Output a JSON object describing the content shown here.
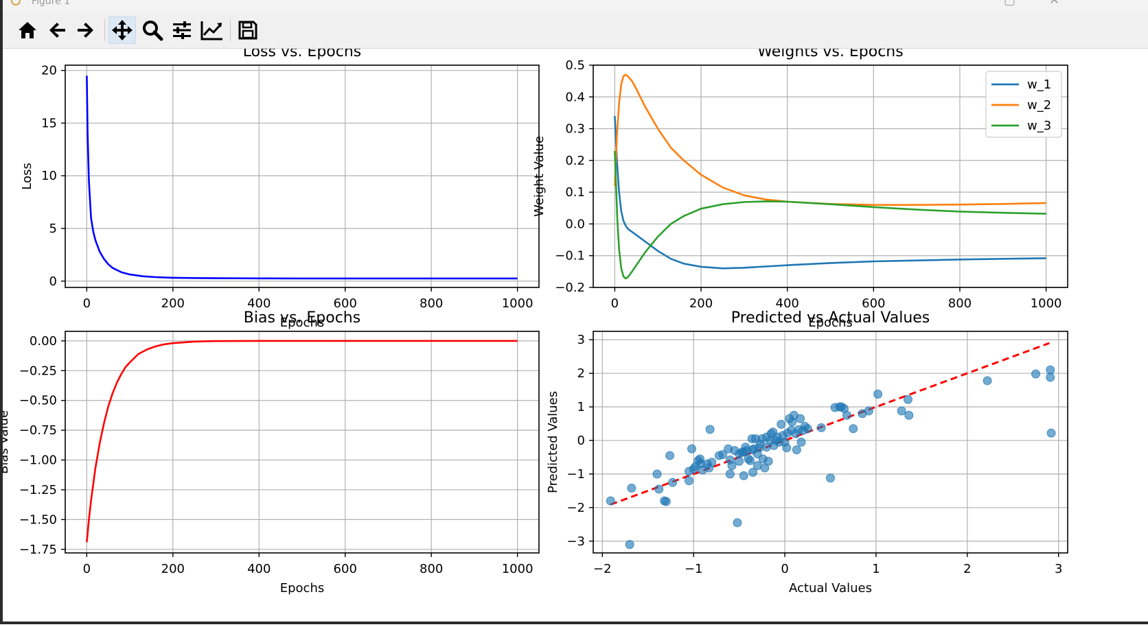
{
  "window": {
    "title": "Figure 1"
  },
  "toolbar": {
    "buttons": [
      {
        "name": "home-button",
        "icon": "home-icon"
      },
      {
        "name": "back-button",
        "icon": "arrow-left-icon"
      },
      {
        "name": "forward-button",
        "icon": "arrow-right-icon"
      },
      {
        "name": "pan-button",
        "icon": "move-icon"
      },
      {
        "name": "zoom-button",
        "icon": "magnifier-icon"
      },
      {
        "name": "subplots-button",
        "icon": "sliders-icon"
      },
      {
        "name": "axes-button",
        "icon": "line-chart-icon"
      },
      {
        "name": "save-button",
        "icon": "floppy-icon"
      }
    ]
  },
  "chart_data": [
    {
      "type": "line",
      "title": "Loss vs. Epochs",
      "xlabel": "Epochs",
      "ylabel": "Loss",
      "xlim": [
        -50,
        1050
      ],
      "ylim": [
        -0.6,
        20.5
      ],
      "xticks": [
        0,
        200,
        400,
        600,
        800,
        1000
      ],
      "xtick_labels": [
        "0",
        "200",
        "400",
        "600",
        "800",
        "1000"
      ],
      "yticks": [
        0,
        5,
        10,
        15,
        20
      ],
      "ytick_labels": [
        "0",
        "5",
        "10",
        "15",
        "20"
      ],
      "grid": true,
      "series": [
        {
          "color": "#0000ff",
          "x": [
            0,
            2,
            5,
            10,
            15,
            20,
            30,
            40,
            50,
            60,
            80,
            100,
            130,
            160,
            200,
            250,
            300,
            400,
            500,
            600,
            700,
            800,
            900,
            1000
          ],
          "y": [
            19.5,
            14.0,
            9.5,
            6.0,
            4.7,
            3.9,
            2.8,
            2.1,
            1.6,
            1.25,
            0.85,
            0.63,
            0.46,
            0.38,
            0.32,
            0.29,
            0.27,
            0.26,
            0.25,
            0.25,
            0.25,
            0.25,
            0.25,
            0.25
          ]
        }
      ]
    },
    {
      "type": "line",
      "title": "Weights vs. Epochs",
      "xlabel": "Epochs",
      "ylabel": "Weight Value",
      "xlim": [
        -50,
        1050
      ],
      "ylim": [
        -0.2,
        0.5
      ],
      "xticks": [
        0,
        200,
        400,
        600,
        800,
        1000
      ],
      "xtick_labels": [
        "0",
        "200",
        "400",
        "600",
        "800",
        "1000"
      ],
      "yticks": [
        -0.2,
        -0.1,
        0.0,
        0.1,
        0.2,
        0.3,
        0.4,
        0.5
      ],
      "ytick_labels": [
        "−0.2",
        "−0.1",
        "0.0",
        "0.1",
        "0.2",
        "0.3",
        "0.4",
        "0.5"
      ],
      "grid": true,
      "legend": "top-right",
      "series": [
        {
          "name": "w_1",
          "color": "#1f77b4",
          "x": [
            0,
            5,
            10,
            15,
            20,
            25,
            30,
            40,
            50,
            70,
            100,
            130,
            160,
            200,
            250,
            300,
            400,
            500,
            600,
            700,
            800,
            900,
            1000
          ],
          "y": [
            0.34,
            0.2,
            0.1,
            0.04,
            0.01,
            -0.005,
            -0.015,
            -0.025,
            -0.035,
            -0.055,
            -0.085,
            -0.11,
            -0.125,
            -0.135,
            -0.14,
            -0.138,
            -0.13,
            -0.123,
            -0.118,
            -0.115,
            -0.112,
            -0.11,
            -0.108
          ]
        },
        {
          "name": "w_2",
          "color": "#ff7f0e",
          "x": [
            0,
            5,
            10,
            15,
            20,
            25,
            30,
            40,
            50,
            70,
            100,
            130,
            160,
            200,
            250,
            300,
            350,
            400,
            500,
            600,
            700,
            800,
            900,
            1000
          ],
          "y": [
            0.12,
            0.28,
            0.38,
            0.44,
            0.465,
            0.47,
            0.465,
            0.45,
            0.425,
            0.37,
            0.3,
            0.24,
            0.2,
            0.155,
            0.115,
            0.09,
            0.077,
            0.07,
            0.063,
            0.06,
            0.06,
            0.061,
            0.063,
            0.066
          ]
        },
        {
          "name": "w_3",
          "color": "#2ca02c",
          "x": [
            0,
            3,
            6,
            10,
            15,
            20,
            25,
            30,
            40,
            50,
            70,
            100,
            130,
            160,
            200,
            250,
            300,
            350,
            400,
            500,
            600,
            700,
            800,
            900,
            1000
          ],
          "y": [
            0.23,
            0.12,
            0.01,
            -0.08,
            -0.14,
            -0.165,
            -0.172,
            -0.168,
            -0.15,
            -0.13,
            -0.09,
            -0.04,
            0.0,
            0.025,
            0.048,
            0.062,
            0.069,
            0.071,
            0.07,
            0.062,
            0.053,
            0.045,
            0.039,
            0.035,
            0.032
          ]
        }
      ]
    },
    {
      "type": "line",
      "title": "Bias vs. Epochs",
      "xlabel": "Epochs",
      "ylabel": "Bias Value",
      "xlim": [
        -50,
        1050
      ],
      "ylim": [
        -1.78,
        0.08
      ],
      "xticks": [
        0,
        200,
        400,
        600,
        800,
        1000
      ],
      "xtick_labels": [
        "0",
        "200",
        "400",
        "600",
        "800",
        "1000"
      ],
      "yticks": [
        0.0,
        -0.25,
        -0.5,
        -0.75,
        -1.0,
        -1.25,
        -1.5,
        -1.75
      ],
      "ytick_labels": [
        "0.00",
        "−0.25",
        "−0.50",
        "−0.75",
        "−1.00",
        "−1.25",
        "−1.50",
        "−1.75"
      ],
      "grid": true,
      "series": [
        {
          "color": "#ff0000",
          "x": [
            0,
            5,
            10,
            20,
            30,
            40,
            50,
            60,
            70,
            80,
            90,
            100,
            120,
            140,
            160,
            180,
            200,
            250,
            300,
            350,
            400,
            500,
            600,
            800,
            1000
          ],
          "y": [
            -1.69,
            -1.5,
            -1.34,
            -1.07,
            -0.86,
            -0.69,
            -0.55,
            -0.44,
            -0.35,
            -0.28,
            -0.22,
            -0.18,
            -0.11,
            -0.072,
            -0.046,
            -0.029,
            -0.019,
            -0.006,
            -0.002,
            -0.001,
            0.0,
            0.0,
            0.0,
            0.0,
            0.0
          ]
        }
      ]
    },
    {
      "type": "scatter",
      "title": "Predicted vs Actual Values",
      "xlabel": "Actual Values",
      "ylabel": "Predicted Values",
      "xlim": [
        -2.1,
        3.1
      ],
      "ylim": [
        -3.35,
        3.25
      ],
      "xticks": [
        -2,
        -1,
        0,
        1,
        2,
        3
      ],
      "xtick_labels": [
        "−2",
        "−1",
        "0",
        "1",
        "2",
        "3"
      ],
      "yticks": [
        -3,
        -2,
        -1,
        0,
        1,
        2,
        3
      ],
      "ytick_labels": [
        "−3",
        "−2",
        "−1",
        "0",
        "1",
        "2",
        "3"
      ],
      "grid": true,
      "reference_line": {
        "color": "#ff0000",
        "style": "dashed",
        "x": [
          -1.91,
          2.9
        ],
        "y": [
          -1.91,
          2.9
        ]
      },
      "points": {
        "color": "#1f77b4",
        "x": [
          -1.91,
          -1.7,
          -1.68,
          -1.4,
          -1.38,
          -1.32,
          -1.3,
          -1.26,
          -1.23,
          -1.05,
          -1.05,
          -1.02,
          -1.0,
          -0.98,
          -0.95,
          -0.93,
          -0.92,
          -0.9,
          -0.85,
          -0.83,
          -0.82,
          -0.8,
          -0.72,
          -0.68,
          -0.62,
          -0.6,
          -0.6,
          -0.58,
          -0.55,
          -0.52,
          -0.5,
          -0.5,
          -0.47,
          -0.45,
          -0.45,
          -0.43,
          -0.42,
          -0.4,
          -0.38,
          -0.36,
          -0.35,
          -0.35,
          -0.34,
          -0.32,
          -0.3,
          -0.3,
          -0.28,
          -0.27,
          -0.25,
          -0.24,
          -0.22,
          -0.2,
          -0.2,
          -0.18,
          -0.16,
          -0.15,
          -0.13,
          -0.12,
          -0.1,
          -0.08,
          -0.06,
          -0.04,
          -0.02,
          0.0,
          0.02,
          0.03,
          0.05,
          0.07,
          0.08,
          0.1,
          0.12,
          0.13,
          0.15,
          0.17,
          0.18,
          0.2,
          0.22,
          0.25,
          0.4,
          0.5,
          0.55,
          0.6,
          0.62,
          0.65,
          0.68,
          0.75,
          0.85,
          0.92,
          1.02,
          1.28,
          1.35,
          1.36,
          2.22,
          2.75,
          2.91,
          2.91,
          2.92
        ],
        "y": [
          -1.8,
          -3.1,
          -1.42,
          -1.0,
          -1.45,
          -1.8,
          -1.82,
          -0.45,
          -1.25,
          -1.2,
          -0.92,
          -0.25,
          -0.85,
          -0.78,
          -0.6,
          -0.55,
          -0.7,
          -0.88,
          -0.7,
          -0.82,
          0.33,
          -0.65,
          -0.45,
          -0.42,
          -0.25,
          -0.58,
          -1.0,
          -0.75,
          -0.3,
          -2.45,
          -0.4,
          -0.62,
          -0.35,
          -0.35,
          -1.05,
          -0.2,
          -0.3,
          -0.55,
          -0.6,
          0.05,
          -0.28,
          -0.95,
          -0.25,
          0.05,
          -0.4,
          -0.75,
          -0.22,
          -0.1,
          0.05,
          -0.55,
          -0.82,
          -0.2,
          0.1,
          -0.62,
          0.0,
          0.2,
          0.25,
          -0.15,
          0.0,
          0.1,
          -0.05,
          0.48,
          0.15,
          -0.05,
          -0.22,
          0.22,
          0.65,
          0.3,
          0.55,
          0.75,
          0.2,
          -0.28,
          0.32,
          0.65,
          -0.05,
          0.3,
          0.42,
          0.35,
          0.38,
          -1.12,
          0.98,
          1.0,
          1.0,
          0.95,
          0.75,
          0.35,
          0.8,
          0.88,
          1.38,
          0.88,
          1.22,
          0.75,
          1.78,
          1.98,
          2.1,
          1.88,
          0.22
        ]
      }
    }
  ]
}
